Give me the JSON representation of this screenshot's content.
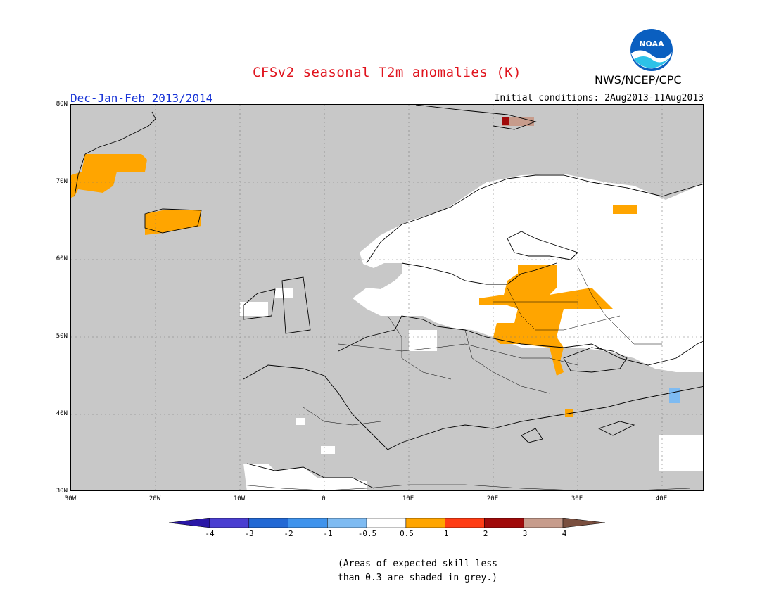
{
  "title": "CFSv2 seasonal T2m anomalies (K)",
  "organization": "NWS/NCEP/CPC",
  "logo_text": "NOAA",
  "season": "Dec-Jan-Feb 2013/2014",
  "initial_conditions": "Initial conditions: 2Aug2013-11Aug2013",
  "lat_ticks": [
    "80N",
    "70N",
    "60N",
    "50N",
    "40N",
    "30N"
  ],
  "lon_ticks": [
    "30W",
    "20W",
    "10W",
    "0",
    "10E",
    "20E",
    "30E",
    "40E"
  ],
  "note_line1": "(Areas of expected skill less",
  "note_line2": "than 0.3 are shaded in grey.)",
  "legend": {
    "labels": [
      "-4",
      "-3",
      "-2",
      "-1",
      "-0.5",
      "0.5",
      "1",
      "2",
      "3",
      "4"
    ],
    "colors": [
      "#2a17a6",
      "#4a3ed1",
      "#2268d4",
      "#3f93ec",
      "#7ebbf2",
      "#ffffff",
      "#ffa500",
      "#ff3c14",
      "#a00a0a",
      "#c79c8c",
      "#7a4f3f"
    ]
  },
  "colors": {
    "skill_grey": "#c8c8c8",
    "land_white": "#ffffff",
    "warm_anomaly": "#ffa500",
    "title_red": "#e0141e",
    "season_blue": "#1733d6"
  }
}
